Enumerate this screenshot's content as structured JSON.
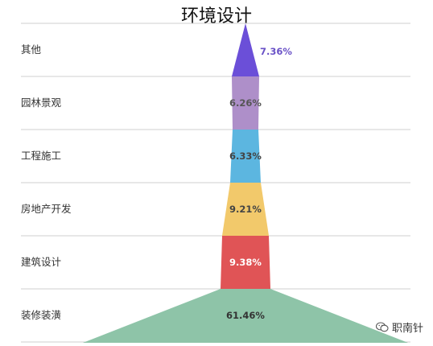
{
  "chart_data": {
    "type": "funnel",
    "title": "环境设计",
    "categories": [
      "其他",
      "园林景观",
      "工程施工",
      "房地产开发",
      "建筑设计",
      "装修装潢"
    ],
    "values": [
      7.36,
      6.26,
      6.33,
      9.21,
      9.38,
      61.46
    ],
    "value_labels": [
      "7.36%",
      "6.26%",
      "6.33%",
      "9.21%",
      "9.38%",
      "61.46%"
    ],
    "colors": [
      "#6b4fd8",
      "#ae8fc9",
      "#5cb6e0",
      "#f2c96b",
      "#e05456",
      "#8ec4a8"
    ],
    "label_colors": [
      "#6a52c7",
      "#555555",
      "#444444",
      "#444444",
      "#ffffff",
      "#333333"
    ],
    "grid": true
  },
  "watermark": {
    "icon": "wechat-icon",
    "text": "职南针"
  }
}
